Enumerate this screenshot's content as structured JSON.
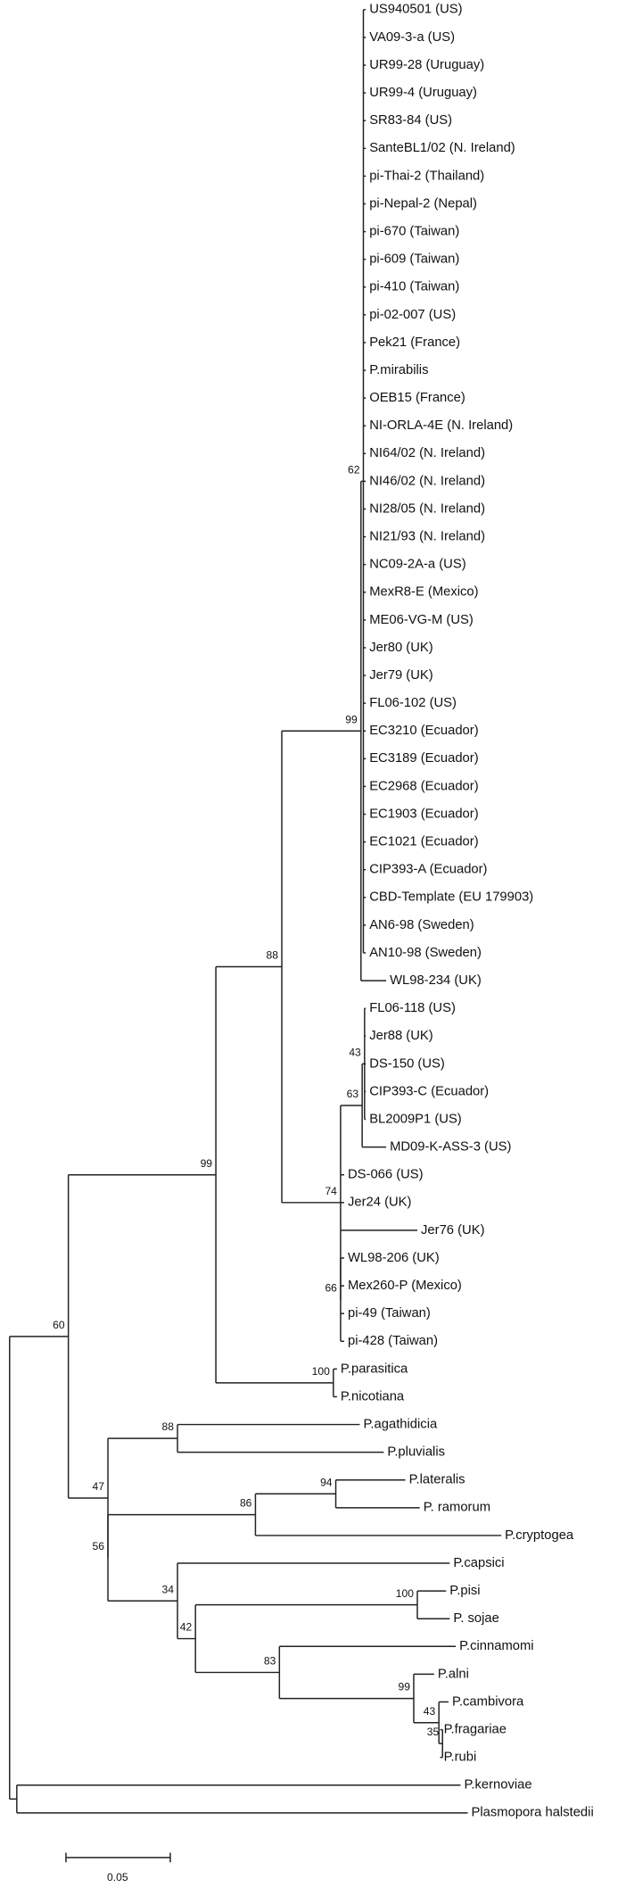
{
  "leaves": [
    "US940501 (US)",
    "VA09-3-a (US)",
    "UR99-28 (Uruguay)",
    "UR99-4 (Uruguay)",
    "SR83-84 (US)",
    "SanteBL1/02 (N. Ireland)",
    "pi-Thai-2 (Thailand)",
    "pi-Nepal-2 (Nepal)",
    "pi-670 (Taiwan)",
    "pi-609 (Taiwan)",
    "pi-410 (Taiwan)",
    "pi-02-007 (US)",
    "Pek21 (France)",
    "P.mirabilis",
    "OEB15 (France)",
    "NI-ORLA-4E (N. Ireland)",
    "NI64/02 (N. Ireland)",
    "NI46/02 (N. Ireland)",
    "NI28/05 (N. Ireland)",
    "NI21/93 (N. Ireland)",
    "NC09-2A-a (US)",
    "MexR8-E (Mexico)",
    "ME06-VG-M (US)",
    "Jer80 (UK)",
    "Jer79 (UK)",
    "FL06-102 (US)",
    "EC3210 (Ecuador)",
    "EC3189 (Ecuador)",
    "EC2968 (Ecuador)",
    "EC1903 (Ecuador)",
    "EC1021 (Ecuador)",
    "CIP393-A (Ecuador)",
    "CBD-Template (EU 179903)",
    "AN6-98 (Sweden)",
    "AN10-98 (Sweden)",
    "WL98-234 (UK)",
    "FL06-118 (US)",
    "Jer88 (UK)",
    "DS-150 (US)",
    "CIP393-C (Ecuador)",
    "BL2009P1 (US)",
    "MD09-K-ASS-3 (US)",
    "DS-066 (US)",
    "Jer24 (UK)",
    "Jer76 (UK)",
    "WL98-206 (UK)",
    "Mex260-P (Mexico)",
    "pi-49 (Taiwan)",
    "pi-428 (Taiwan)",
    "P.parasitica",
    "P.nicotiana",
    "P.agathidicia",
    "P.pluvialis",
    "P.lateralis",
    "P. ramorum",
    "P.cryptogea",
    "P.capsici",
    "P.pisi",
    "P. sojae",
    "P.cinnamomi",
    "P.alni",
    "P.cambivora",
    "P.fragariae",
    "P.rubi",
    "P.kernoviae",
    "Plasmopora halstedii"
  ],
  "support": [
    62,
    99,
    43,
    63,
    66,
    74,
    88,
    100,
    99,
    88,
    94,
    86,
    100,
    35,
    43,
    99,
    83,
    42,
    34,
    56,
    47,
    60
  ],
  "scale_bar": {
    "label": "0.05"
  }
}
